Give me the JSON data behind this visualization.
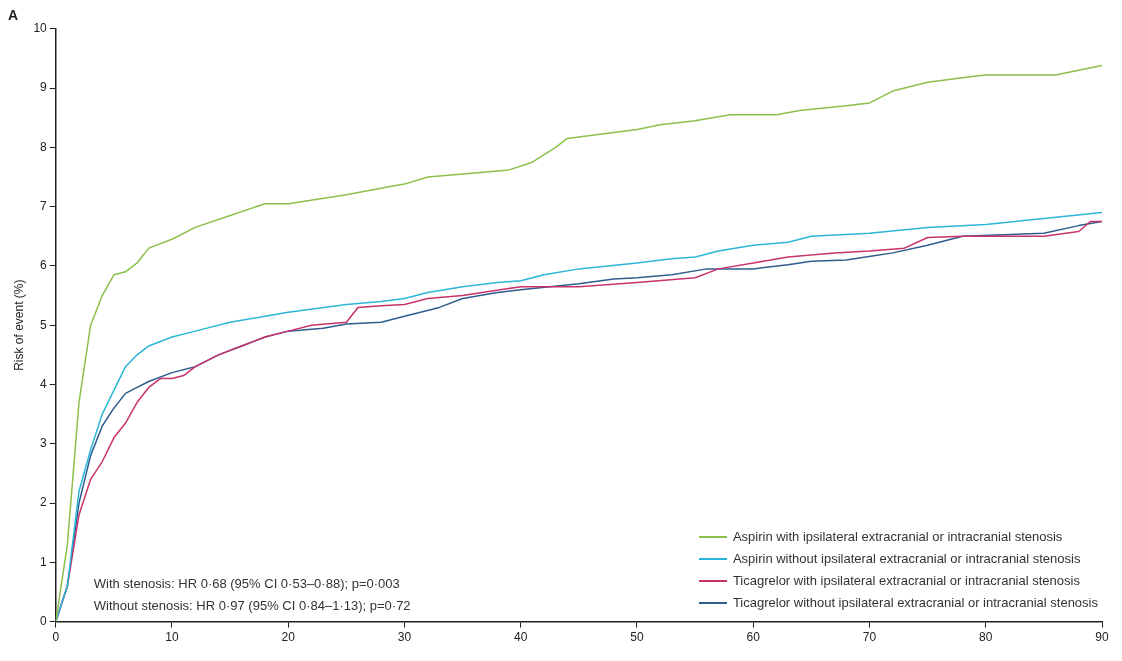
{
  "chart_data": {
    "type": "line",
    "title": "A",
    "ylabel": "Risk of event (%)",
    "xlim": [
      0,
      90
    ],
    "xticks": [
      0,
      10,
      20,
      30,
      40,
      50,
      60,
      70,
      80,
      90
    ],
    "ylim": [
      0,
      10
    ],
    "yticks": [
      0,
      1,
      2,
      3,
      4,
      5,
      6,
      7,
      8,
      9,
      10
    ],
    "grid": false,
    "legend": "bottom right",
    "marker": "none",
    "line_style": "solid",
    "annotations": [
      "With stenosis: HR 0·68 (95% CI 0·53–0·88); p=0·003",
      "Without stenosis: HR 0·97 (95% CI 0·84–1·13); p=0·72"
    ],
    "series": [
      {
        "name": "Aspirin with ipsilateral extracranial or intracranial stenosis",
        "color": "#8cc04a",
        "x": [
          0,
          1,
          2,
          3,
          4,
          5,
          6,
          7,
          8,
          10,
          12,
          15,
          18,
          20,
          25,
          29,
          30,
          32,
          35,
          39,
          41,
          43,
          44,
          46,
          50,
          52,
          55,
          58,
          62,
          64,
          68,
          70,
          72,
          75,
          77,
          79,
          80,
          86,
          88,
          90
        ],
        "values": [
          0,
          1.3,
          3.7,
          5.0,
          5.5,
          5.85,
          5.9,
          6.05,
          6.3,
          6.45,
          6.65,
          6.85,
          7.05,
          7.05,
          7.2,
          7.35,
          7.38,
          7.5,
          7.55,
          7.62,
          7.75,
          8.0,
          8.15,
          8.2,
          8.3,
          8.38,
          8.45,
          8.55,
          8.55,
          8.62,
          8.7,
          8.75,
          8.95,
          9.1,
          9.15,
          9.2,
          9.22,
          9.22,
          9.3,
          9.38
        ]
      },
      {
        "name": "Aspirin without ipsilateral extracranial or intracranial stenosis",
        "color": "#2bb5d6",
        "x": [
          0,
          1,
          2,
          3,
          4,
          5,
          6,
          7,
          8,
          10,
          12,
          15,
          18,
          20,
          25,
          28,
          30,
          32,
          35,
          38,
          40,
          42,
          45,
          50,
          53,
          55,
          57,
          60,
          63,
          65,
          70,
          75,
          80,
          85,
          90
        ],
        "values": [
          0,
          0.6,
          2.2,
          2.9,
          3.5,
          3.9,
          4.3,
          4.5,
          4.65,
          4.8,
          4.9,
          5.05,
          5.15,
          5.22,
          5.35,
          5.4,
          5.45,
          5.55,
          5.65,
          5.72,
          5.75,
          5.85,
          5.95,
          6.05,
          6.12,
          6.15,
          6.25,
          6.35,
          6.4,
          6.5,
          6.55,
          6.65,
          6.7,
          6.8,
          6.9
        ]
      },
      {
        "name": "Ticagrelor with ipsilateral extracranial or intracranial stenosis",
        "color": "#c8336a",
        "x": [
          0,
          1,
          2,
          3,
          4,
          5,
          6,
          7,
          8,
          9,
          10,
          11,
          12,
          14,
          16,
          18,
          20,
          22,
          25,
          26,
          28,
          30,
          32,
          35,
          40,
          45,
          50,
          55,
          57,
          60,
          63,
          67,
          70,
          73,
          75,
          78,
          85,
          88,
          89,
          90
        ],
        "values": [
          0,
          0.6,
          1.8,
          2.4,
          2.7,
          3.1,
          3.35,
          3.7,
          3.95,
          4.1,
          4.1,
          4.15,
          4.3,
          4.5,
          4.65,
          4.8,
          4.9,
          5.0,
          5.05,
          5.3,
          5.33,
          5.35,
          5.45,
          5.5,
          5.65,
          5.65,
          5.72,
          5.8,
          5.95,
          6.05,
          6.15,
          6.22,
          6.25,
          6.3,
          6.48,
          6.5,
          6.5,
          6.58,
          6.75,
          6.75
        ]
      },
      {
        "name": "Ticagrelor without ipsilateral extracranial or intracranial stenosis",
        "color": "#2f5d8e",
        "x": [
          0,
          1,
          2,
          3,
          4,
          5,
          6,
          7,
          8,
          10,
          12,
          14,
          16,
          18,
          20,
          23,
          25,
          28,
          30,
          33,
          35,
          38,
          40,
          45,
          48,
          50,
          53,
          56,
          60,
          63,
          65,
          68,
          72,
          75,
          78,
          85,
          88,
          90
        ],
        "values": [
          0,
          0.6,
          2.0,
          2.8,
          3.3,
          3.6,
          3.85,
          3.95,
          4.05,
          4.2,
          4.3,
          4.5,
          4.65,
          4.8,
          4.9,
          4.95,
          5.02,
          5.05,
          5.15,
          5.3,
          5.45,
          5.55,
          5.6,
          5.7,
          5.78,
          5.8,
          5.85,
          5.95,
          5.95,
          6.02,
          6.08,
          6.1,
          6.22,
          6.35,
          6.5,
          6.55,
          6.68,
          6.75
        ]
      }
    ]
  }
}
